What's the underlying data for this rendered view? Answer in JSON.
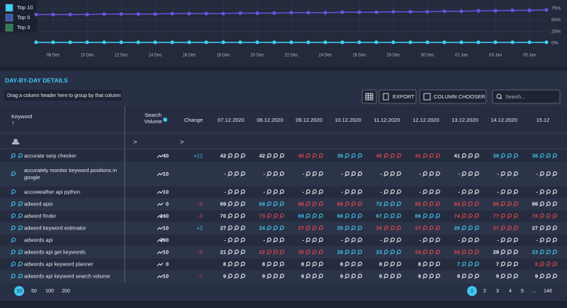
{
  "trend_chart": {
    "legend": [
      {
        "name": "Top 10",
        "color": "#3fd0f0"
      },
      {
        "name": "Top 5",
        "color": "#3a5aa8"
      },
      {
        "name": "Top 3",
        "color": "#2e7d52"
      }
    ],
    "x_labels": [
      null,
      "08 Dec",
      null,
      "10 Dec",
      null,
      "12 Dec",
      null,
      "14 Dec",
      null,
      "16 Dec",
      null,
      "18 Dec",
      null,
      "20 Dec",
      null,
      "22 Dec",
      null,
      "24 Dec",
      null,
      "26 Dec",
      null,
      "28 Dec",
      null,
      "30 Dec",
      null,
      "01 Jan",
      null,
      "03 Jan",
      null,
      "05 Jan",
      null
    ],
    "series": [
      {
        "color": "#6b52dc",
        "values": [
          62,
          62,
          62,
          62,
          63,
          63,
          63,
          63,
          64,
          64,
          64,
          64,
          65,
          65,
          65,
          66,
          66,
          66,
          67,
          67,
          67,
          68,
          68,
          68,
          69,
          69,
          70,
          70,
          71,
          71,
          72
        ]
      },
      {
        "color": "#3fd0f0",
        "values": [
          2,
          2,
          2,
          2,
          2,
          2,
          2,
          2,
          2,
          2,
          2,
          2,
          2,
          2,
          2,
          2,
          2,
          2,
          2,
          2,
          2,
          2,
          2,
          2,
          2,
          2,
          2,
          2,
          2,
          2,
          2
        ]
      }
    ],
    "ylim": [
      0,
      75
    ],
    "yticks": [
      {
        "value": 75,
        "label": "75%"
      },
      {
        "value": 50,
        "label": "50%"
      },
      {
        "value": 25,
        "label": "25%"
      },
      {
        "value": 0,
        "label": "0%"
      }
    ]
  },
  "details": {
    "title": "DAY-BY-DAY DETAILS",
    "group_hint": "Drag a column header here to group by that column",
    "buttons": [
      "EXPORT",
      "COLUMN CHOOSER"
    ],
    "search_placeholder": "Search...",
    "filter_signs": [
      ">",
      ">"
    ],
    "columns": [
      "Keyword",
      "Search Volume",
      "Change",
      "07.12.2020",
      "08.12.2020",
      "09.12.2020",
      "10.12.2020",
      "11.12.2020",
      "12.12.2020",
      "13.12.2020",
      "14.12.2020",
      "15.12"
    ],
    "rows": [
      {
        "keyword": "accurate serp checker",
        "volume": 40,
        "change": "+12",
        "positions": [
          42,
          42,
          45,
          39,
          40,
          41,
          41,
          39,
          38
        ]
      },
      {
        "keyword": "accurately monitor keyword positions in google",
        "volume": 10,
        "change": "",
        "positions": [
          "-",
          "-",
          "-",
          "-",
          "-",
          "-",
          "-",
          "-",
          "-"
        ]
      },
      {
        "keyword": "accuweather api python",
        "volume": 10,
        "change": "",
        "positions": [
          "-",
          "-",
          "-",
          "-",
          "-",
          "-",
          "-",
          "-",
          "-"
        ]
      },
      {
        "keyword": "adword apis",
        "volume": 0,
        "change": "-5",
        "positions": [
          69,
          68,
          86,
          89,
          72,
          82,
          84,
          86,
          86
        ]
      },
      {
        "keyword": "adword finder",
        "volume": 140,
        "change": "-9",
        "positions": [
          70,
          73,
          69,
          68,
          67,
          66,
          74,
          77,
          78
        ]
      },
      {
        "keyword": "adword keyword estimator",
        "volume": 10,
        "change": "+2",
        "positions": [
          27,
          24,
          27,
          25,
          26,
          27,
          26,
          27,
          27
        ]
      },
      {
        "keyword": "adwords api",
        "volume": 390,
        "change": "",
        "positions": [
          "-",
          "-",
          "-",
          "-",
          "-",
          "-",
          "-",
          "-",
          "-"
        ]
      },
      {
        "keyword": "adwords api get keywords",
        "volume": 10,
        "change": "-6",
        "positions": [
          21,
          22,
          30,
          28,
          23,
          24,
          28,
          28,
          23
        ]
      },
      {
        "keyword": "adwords api keyword planner",
        "volume": 0,
        "change": "",
        "positions": [
          8,
          8,
          8,
          8,
          8,
          8,
          7,
          7,
          8
        ]
      },
      {
        "keyword": "adwords api keyword search volume",
        "volume": 10,
        "change": "-1",
        "positions": [
          9,
          9,
          9,
          9,
          9,
          9,
          9,
          9,
          9
        ]
      }
    ],
    "page_sizes": [
      10,
      50,
      100,
      200
    ],
    "pages": [
      1,
      2,
      3,
      4,
      5,
      "...",
      146
    ]
  }
}
